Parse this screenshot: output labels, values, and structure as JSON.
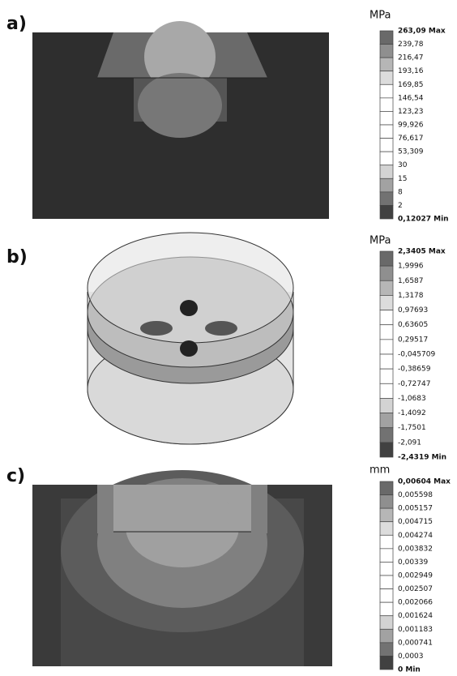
{
  "panels": [
    {
      "label": "a)",
      "unit": "MPa",
      "legend": [
        "263,09 Max",
        "239,78",
        "216,47",
        "193,16",
        "169,85",
        "146,54",
        "123,23",
        "99,926",
        "76,617",
        "53,309",
        "30",
        "15",
        "8",
        "2",
        "0,12027 Min"
      ]
    },
    {
      "label": "b)",
      "unit": "MPa",
      "legend": [
        "2,3405 Max",
        "1,9996",
        "1,6587",
        "1,3178",
        "0,97693",
        "0,63605",
        "0,29517",
        "-0,045709",
        "-0,38659",
        "-0,72747",
        "-1,0683",
        "-1,4092",
        "-1,7501",
        "-2,091",
        "-2,4319 Min"
      ]
    },
    {
      "label": "c)",
      "unit": "mm",
      "legend": [
        "0,00604 Max",
        "0,005598",
        "0,005157",
        "0,004715",
        "0,004274",
        "0,003832",
        "0,00339",
        "0,002949",
        "0,002507",
        "0,002066",
        "0,001624",
        "0,001183",
        "0,000741",
        "0,0003",
        "0 Min"
      ]
    }
  ]
}
